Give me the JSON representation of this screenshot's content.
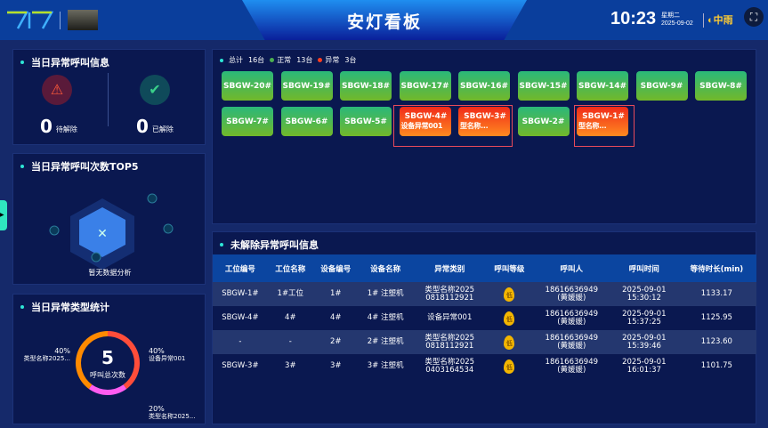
{
  "header": {
    "title": "安灯看板",
    "time": "10:23",
    "weekday": "星期二",
    "date": "2025-09-02",
    "weather": "中雨",
    "fullscreen_icon": "fullscreen-icon"
  },
  "panel_call_info": {
    "title": "当日异常呼叫信息",
    "pending_count": "0",
    "pending_label": "待解除",
    "resolved_count": "0",
    "resolved_label": "已解除"
  },
  "panel_top5": {
    "title": "当日异常呼叫次数TOP5",
    "empty_text": "暂无数据分析"
  },
  "panel_type_stats": {
    "title": "当日异常类型统计",
    "total": "5",
    "total_label": "呼叫总次数",
    "slices": [
      {
        "label": "设备异常001",
        "percent": "40%",
        "value": 40,
        "color": "#ff4d3a"
      },
      {
        "label": "类型名称2025...",
        "percent": "20%",
        "value": 20,
        "color": "#ff5cf0"
      },
      {
        "label": "类型名称2025...",
        "percent": "40%",
        "value": 40,
        "color": "#ff8a00"
      }
    ]
  },
  "stations": {
    "total_label": "总计",
    "total": "16台",
    "normal_label": "正常",
    "normal": "13台",
    "abnormal_label": "异常",
    "abnormal": "3台",
    "colors": {
      "normal": "#4caf50",
      "abnormal": "#ff3d1f"
    },
    "items": [
      {
        "name": "SBGW-20#",
        "status": "normal"
      },
      {
        "name": "SBGW-19#",
        "status": "normal"
      },
      {
        "name": "SBGW-18#",
        "status": "normal"
      },
      {
        "name": "SBGW-17#",
        "status": "normal"
      },
      {
        "name": "SBGW-16#",
        "status": "normal"
      },
      {
        "name": "SBGW-15#",
        "status": "normal"
      },
      {
        "name": "SBGW-14#",
        "status": "normal"
      },
      {
        "name": "SBGW-9#",
        "status": "normal"
      },
      {
        "name": "SBGW-8#",
        "status": "normal"
      },
      {
        "name": "SBGW-7#",
        "status": "normal"
      },
      {
        "name": "SBGW-6#",
        "status": "normal"
      },
      {
        "name": "SBGW-5#",
        "status": "normal"
      },
      {
        "name": "SBGW-4#",
        "status": "abnormal",
        "detail": "设备异常001"
      },
      {
        "name": "SBGW-3#",
        "status": "abnormal",
        "detail": "型名称..."
      },
      {
        "name": "SBGW-2#",
        "status": "normal"
      },
      {
        "name": "SBGW-1#",
        "status": "abnormal",
        "detail": "型名称..."
      }
    ]
  },
  "unresolved": {
    "title": "未解除异常呼叫信息",
    "columns": [
      "工位编号",
      "工位名称",
      "设备编号",
      "设备名称",
      "异常类别",
      "呼叫等级",
      "呼叫人",
      "呼叫时间",
      "等待时长(min)"
    ],
    "rows": [
      [
        "SBGW-1#",
        "1#工位",
        "1#",
        "1# 注塑机",
        "类型名称2025\n0818112921",
        "低",
        "18616636949\n(黄媛媛)",
        "2025-09-01\n15:30:12",
        "1133.17"
      ],
      [
        "SBGW-4#",
        "4#",
        "4#",
        "4# 注塑机",
        "设备异常001",
        "低",
        "18616636949\n(黄媛媛)",
        "2025-09-01\n15:37:25",
        "1125.95"
      ],
      [
        "-",
        "-",
        "2#",
        "2# 注塑机",
        "类型名称2025\n0818112921",
        "低",
        "18616636949\n(黄媛媛)",
        "2025-09-01\n15:39:46",
        "1123.60"
      ],
      [
        "SBGW-3#",
        "3#",
        "3#",
        "3# 注塑机",
        "类型名称2025\n0403164534",
        "低",
        "18616636949\n(黄媛媛)",
        "2025-09-01\n16:01:37",
        "1101.75"
      ]
    ]
  }
}
